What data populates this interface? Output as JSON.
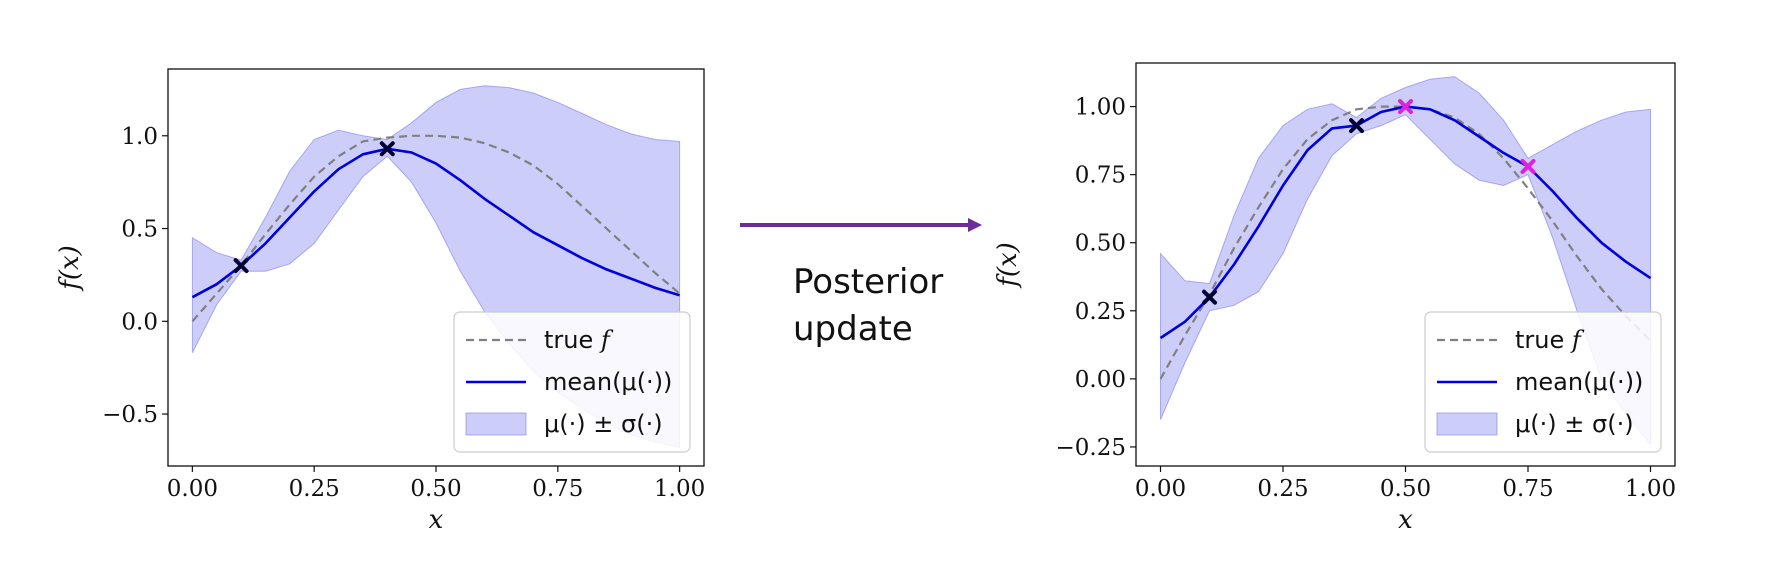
{
  "colors": {
    "true_f": "#808080",
    "mean": "#0000dd",
    "band": "#7b7bee",
    "obs_marker": "#000033",
    "new_marker": "#dd22dd",
    "arrow": "#6a2d9a"
  },
  "arrow_caption": {
    "line1": "Posterior",
    "line2": "update"
  },
  "chart_data": [
    {
      "type": "line",
      "xlabel": "x",
      "ylabel": "f(x)",
      "xlim": [
        -0.05,
        1.05
      ],
      "ylim": [
        -0.78,
        1.36
      ],
      "xticks": [
        0.0,
        0.25,
        0.5,
        0.75,
        1.0
      ],
      "xtick_labels": [
        "0.00",
        "0.25",
        "0.50",
        "0.75",
        "1.00"
      ],
      "yticks": [
        -0.5,
        0.0,
        0.5,
        1.0
      ],
      "ytick_labels": [
        "−0.5",
        "0.0",
        "0.5",
        "1.0"
      ],
      "x": [
        0.0,
        0.05,
        0.1,
        0.15,
        0.2,
        0.25,
        0.3,
        0.35,
        0.4,
        0.45,
        0.5,
        0.55,
        0.6,
        0.65,
        0.7,
        0.75,
        0.8,
        0.85,
        0.9,
        0.95,
        1.0
      ],
      "series": [
        {
          "name": "true f",
          "style": "dashed",
          "values": [
            0.0,
            0.15,
            0.3,
            0.47,
            0.63,
            0.78,
            0.89,
            0.97,
            0.99,
            1.0,
            1.0,
            0.99,
            0.96,
            0.91,
            0.84,
            0.74,
            0.62,
            0.5,
            0.38,
            0.26,
            0.15
          ]
        },
        {
          "name": "mean(μ(·))",
          "style": "solid",
          "values": [
            0.13,
            0.2,
            0.3,
            0.42,
            0.56,
            0.7,
            0.82,
            0.9,
            0.93,
            0.91,
            0.85,
            0.76,
            0.66,
            0.57,
            0.48,
            0.41,
            0.34,
            0.28,
            0.23,
            0.18,
            0.14
          ]
        }
      ],
      "band": {
        "name": "μ(·) ± σ(·)",
        "upper": [
          0.45,
          0.37,
          0.33,
          0.56,
          0.81,
          0.98,
          1.03,
          1.0,
          0.98,
          1.07,
          1.18,
          1.25,
          1.27,
          1.26,
          1.23,
          1.18,
          1.12,
          1.06,
          1.01,
          0.98,
          0.97
        ],
        "lower": [
          -0.17,
          0.09,
          0.27,
          0.27,
          0.31,
          0.42,
          0.6,
          0.78,
          0.89,
          0.75,
          0.53,
          0.27,
          0.05,
          -0.12,
          -0.27,
          -0.38,
          -0.47,
          -0.55,
          -0.61,
          -0.65,
          -0.68
        ]
      },
      "observations": [
        {
          "x": 0.1,
          "y": 0.3,
          "kind": "existing"
        },
        {
          "x": 0.4,
          "y": 0.93,
          "kind": "existing"
        }
      ],
      "legend": {
        "placement": "lower-right",
        "entries": [
          {
            "label": "true ",
            "math": "f",
            "kind": "dashed"
          },
          {
            "label": "mean(μ(·))",
            "math": "",
            "kind": "solid"
          },
          {
            "label": "μ(·) ± σ(·)",
            "math": "",
            "kind": "band"
          }
        ]
      }
    },
    {
      "type": "line",
      "xlabel": "x",
      "ylabel": "f(x)",
      "xlim": [
        -0.05,
        1.05
      ],
      "ylim": [
        -0.32,
        1.16
      ],
      "xticks": [
        0.0,
        0.25,
        0.5,
        0.75,
        1.0
      ],
      "xtick_labels": [
        "0.00",
        "0.25",
        "0.50",
        "0.75",
        "1.00"
      ],
      "yticks": [
        -0.25,
        0.0,
        0.25,
        0.5,
        0.75,
        1.0
      ],
      "ytick_labels": [
        "−0.25",
        "0.00",
        "0.25",
        "0.50",
        "0.75",
        "1.00"
      ],
      "x": [
        0.0,
        0.05,
        0.1,
        0.15,
        0.2,
        0.25,
        0.3,
        0.35,
        0.4,
        0.45,
        0.5,
        0.55,
        0.6,
        0.65,
        0.7,
        0.75,
        0.8,
        0.85,
        0.9,
        0.95,
        1.0
      ],
      "series": [
        {
          "name": "true f",
          "style": "dashed",
          "values": [
            0.0,
            0.16,
            0.31,
            0.48,
            0.63,
            0.77,
            0.88,
            0.95,
            0.99,
            1.0,
            1.0,
            0.99,
            0.96,
            0.9,
            0.81,
            0.7,
            0.58,
            0.45,
            0.33,
            0.23,
            0.14
          ]
        },
        {
          "name": "mean(μ(·))",
          "style": "solid",
          "values": [
            0.15,
            0.21,
            0.3,
            0.42,
            0.56,
            0.71,
            0.84,
            0.92,
            0.93,
            0.98,
            1.0,
            0.99,
            0.95,
            0.89,
            0.83,
            0.78,
            0.69,
            0.59,
            0.5,
            0.43,
            0.37
          ]
        }
      ],
      "band": {
        "name": "μ(·) ± σ(·)",
        "upper": [
          0.46,
          0.36,
          0.35,
          0.6,
          0.81,
          0.93,
          0.99,
          1.01,
          0.96,
          1.03,
          1.07,
          1.1,
          1.11,
          1.05,
          0.95,
          0.81,
          0.86,
          0.91,
          0.95,
          0.98,
          0.99
        ],
        "lower": [
          -0.15,
          0.06,
          0.25,
          0.27,
          0.32,
          0.46,
          0.66,
          0.82,
          0.9,
          0.93,
          0.97,
          0.88,
          0.79,
          0.73,
          0.71,
          0.75,
          0.52,
          0.25,
          0.0,
          -0.13,
          -0.24
        ]
      },
      "observations": [
        {
          "x": 0.1,
          "y": 0.3,
          "kind": "existing"
        },
        {
          "x": 0.4,
          "y": 0.93,
          "kind": "existing"
        },
        {
          "x": 0.5,
          "y": 1.0,
          "kind": "new"
        },
        {
          "x": 0.75,
          "y": 0.78,
          "kind": "new"
        }
      ],
      "legend": {
        "placement": "lower-right",
        "entries": [
          {
            "label": "true ",
            "math": "f",
            "kind": "dashed"
          },
          {
            "label": "mean(μ(·))",
            "math": "",
            "kind": "solid"
          },
          {
            "label": "μ(·) ± σ(·)",
            "math": "",
            "kind": "band"
          }
        ]
      }
    }
  ]
}
